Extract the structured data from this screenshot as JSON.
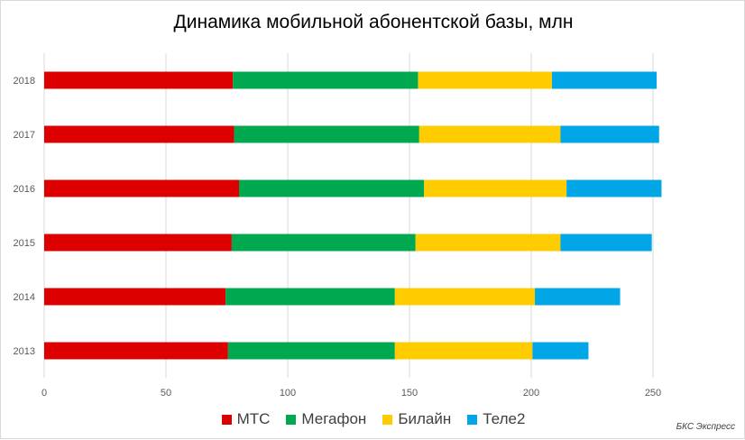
{
  "chart_data": {
    "type": "bar",
    "orientation": "horizontal",
    "stacked": true,
    "title": "Динамика мобильной абонентской базы, млн",
    "categories": [
      "2013",
      "2014",
      "2015",
      "2016",
      "2017",
      "2018"
    ],
    "series": [
      {
        "name": "МТС",
        "color": "#DD0000",
        "values": [
          75.5,
          74.5,
          77.0,
          80.0,
          78.0,
          77.5
        ]
      },
      {
        "name": "Мегафон",
        "color": "#00A850",
        "values": [
          68.5,
          69.5,
          75.5,
          76.0,
          76.0,
          76.0
        ]
      },
      {
        "name": "Билайн",
        "color": "#FFCC00",
        "values": [
          56.5,
          57.5,
          59.5,
          58.5,
          58.0,
          55.0
        ]
      },
      {
        "name": "Теле2",
        "color": "#00A6E6",
        "values": [
          23.0,
          35.0,
          37.5,
          39.0,
          40.5,
          43.0
        ]
      }
    ],
    "xlim": [
      0,
      250
    ],
    "xticks": [
      0,
      50,
      100,
      150,
      200,
      250
    ],
    "grid": true,
    "legend_position": "bottom"
  },
  "source_note": "БКС Экспресс"
}
